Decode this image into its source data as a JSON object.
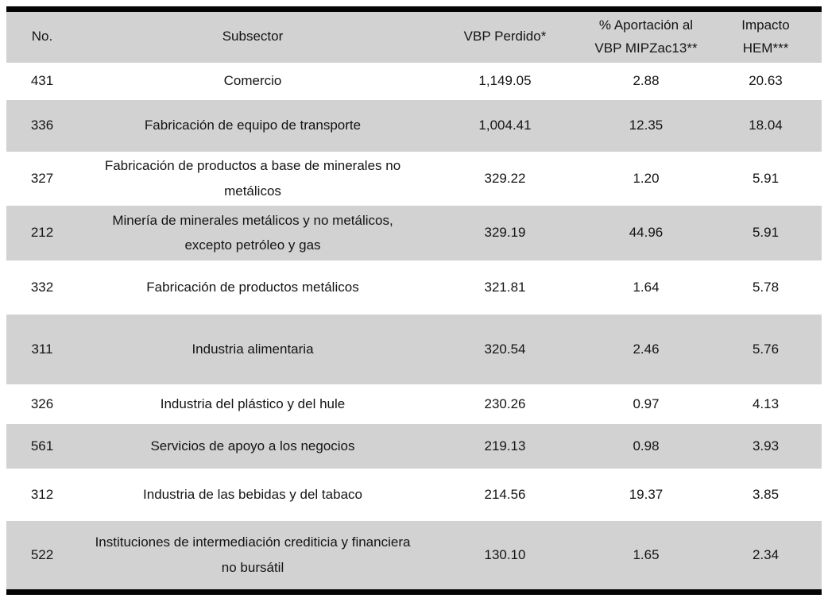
{
  "table": {
    "columns": {
      "no": "No.",
      "subsector": "Subsector",
      "vbp": "VBP Perdido*",
      "aportacion": "% Aportación al\nVBP MIPZac13**",
      "impacto": "Impacto\nHEM***"
    },
    "rows": [
      {
        "no": "431",
        "subsector": "Comercio",
        "vbp": "1,149.05",
        "aportacion": "2.88",
        "impacto": "20.63"
      },
      {
        "no": "336",
        "subsector": "Fabricación de equipo de transporte",
        "vbp": "1,004.41",
        "aportacion": "12.35",
        "impacto": "18.04"
      },
      {
        "no": "327",
        "subsector": "Fabricación de productos a base de minerales no metálicos",
        "vbp": "329.22",
        "aportacion": "1.20",
        "impacto": "5.91"
      },
      {
        "no": "212",
        "subsector": "Minería de minerales metálicos y no metálicos, excepto petróleo y gas",
        "vbp": "329.19",
        "aportacion": "44.96",
        "impacto": "5.91"
      },
      {
        "no": "332",
        "subsector": "Fabricación de productos metálicos",
        "vbp": "321.81",
        "aportacion": "1.64",
        "impacto": "5.78"
      },
      {
        "no": "311",
        "subsector": "Industria alimentaria",
        "vbp": "320.54",
        "aportacion": "2.46",
        "impacto": "5.76"
      },
      {
        "no": "326",
        "subsector": "Industria del plástico y del hule",
        "vbp": "230.26",
        "aportacion": "0.97",
        "impacto": "4.13"
      },
      {
        "no": "561",
        "subsector": "Servicios de apoyo a los negocios",
        "vbp": "219.13",
        "aportacion": "0.98",
        "impacto": "3.93"
      },
      {
        "no": "312",
        "subsector": "Industria de las bebidas y del tabaco",
        "vbp": "214.56",
        "aportacion": "19.37",
        "impacto": "3.85"
      },
      {
        "no": "522",
        "subsector": "Instituciones de intermediación crediticia y financiera no bursátil",
        "vbp": "130.10",
        "aportacion": "1.65",
        "impacto": "2.34"
      }
    ]
  },
  "colors": {
    "stripe": "#d2d2d2",
    "border": "#050505",
    "background": "#ffffff",
    "text": "#141414"
  }
}
